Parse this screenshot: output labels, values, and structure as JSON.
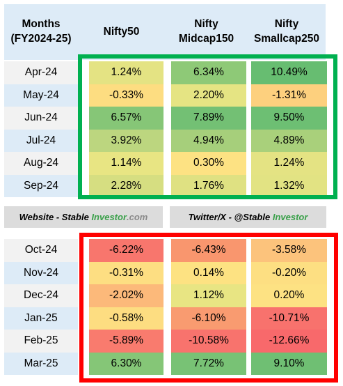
{
  "header": {
    "months_line1": "Months",
    "months_line2": "(FY2024-25)",
    "col1": "Nifty50",
    "col2_line1": "Nifty",
    "col2_line2": "Midcap150",
    "col3_line1": "Nifty",
    "col3_line2": "Smallcap250"
  },
  "h1_rows": [
    {
      "month": "Apr-24",
      "v": [
        "1.24%",
        "6.34%",
        "10.49%"
      ],
      "bg": [
        "#e4e383",
        "#8ec977",
        "#67bd71"
      ]
    },
    {
      "month": "May-24",
      "v": [
        "-0.33%",
        "2.20%",
        "-1.31%"
      ],
      "bg": [
        "#fddd81",
        "#e5e483",
        "#fdd07e"
      ]
    },
    {
      "month": "Jun-24",
      "v": [
        "6.57%",
        "7.89%",
        "9.50%"
      ],
      "bg": [
        "#86c677",
        "#73c074",
        "#6dbf73"
      ]
    },
    {
      "month": "Jul-24",
      "v": [
        "3.92%",
        "4.94%",
        "4.89%"
      ],
      "bg": [
        "#bcd67f",
        "#a6cf7b",
        "#a9d07b"
      ]
    },
    {
      "month": "Aug-24",
      "v": [
        "1.14%",
        "0.30%",
        "1.24%"
      ],
      "bg": [
        "#e8e583",
        "#fde283",
        "#e4e383"
      ]
    },
    {
      "month": "Sep-24",
      "v": [
        "2.28%",
        "1.76%",
        "1.32%"
      ],
      "bg": [
        "#d6de81",
        "#dfe182",
        "#e2e383"
      ]
    }
  ],
  "banner": {
    "website_prefix": "Website - Stable",
    "website_brand": "Investor",
    "website_suffix": ".com",
    "twitter_prefix": "Twitter/X - @Stable",
    "twitter_brand": "Investor"
  },
  "h2_rows": [
    {
      "month": "Oct-24",
      "v": [
        "-6.22%",
        "-6.43%",
        "-3.58%"
      ],
      "bg": [
        "#f8766d",
        "#f9966e",
        "#fcc37c"
      ]
    },
    {
      "month": "Nov-24",
      "v": [
        "-0.31%",
        "0.14%",
        "-0.20%"
      ],
      "bg": [
        "#fdde82",
        "#fde282",
        "#fddf82"
      ]
    },
    {
      "month": "Dec-24",
      "v": [
        "-2.02%",
        "1.12%",
        "0.20%"
      ],
      "bg": [
        "#fcb97a",
        "#e8e583",
        "#fde283"
      ]
    },
    {
      "month": "Jan-25",
      "v": [
        "-0.58%",
        "-6.10%",
        "-10.71%"
      ],
      "bg": [
        "#fddd81",
        "#f99b70",
        "#f8726d"
      ]
    },
    {
      "month": "Feb-25",
      "v": [
        "-5.89%",
        "-10.58%",
        "-12.66%"
      ],
      "bg": [
        "#f97b6e",
        "#f8736d",
        "#f8696b"
      ]
    },
    {
      "month": "Mar-25",
      "v": [
        "6.30%",
        "7.72%",
        "9.10%"
      ],
      "bg": [
        "#85c677",
        "#78c275",
        "#6fbf73"
      ]
    }
  ],
  "colors": {
    "header_bg": "#ddebf7",
    "row_alt_a": "#f2f2f2",
    "row_alt_b": "#ddebf7",
    "green_box": "#00b050",
    "red_box": "#ff0000",
    "banner_bg": "#dcdcdc"
  }
}
